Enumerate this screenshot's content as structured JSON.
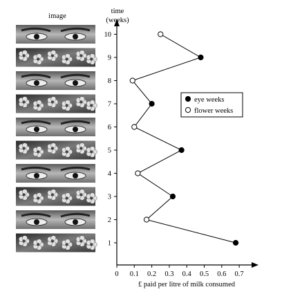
{
  "image_column": {
    "header": "image",
    "panels": [
      "eyes",
      "flowers",
      "eyes",
      "flowers",
      "eyes",
      "flowers",
      "eyes",
      "flowers",
      "eyes",
      "flowers"
    ]
  },
  "chart_data": {
    "type": "line",
    "orientation": "horizontal-time",
    "ylabel_line1": "time",
    "ylabel_line2": "(weeks)",
    "xlabel": "£ paid per litre of milk consumed",
    "x_ticks": [
      "0",
      "0.1",
      "0.2",
      "0.3",
      "0.4",
      "0.5",
      "0.6",
      "0.7"
    ],
    "y_ticks": [
      "1",
      "2",
      "3",
      "4",
      "5",
      "6",
      "7",
      "8",
      "9",
      "10"
    ],
    "xlim": [
      0,
      0.75
    ],
    "ylim": [
      0.5,
      10.5
    ],
    "week_values": [
      {
        "week": 1,
        "value": 0.68,
        "type": "eye"
      },
      {
        "week": 2,
        "value": 0.17,
        "type": "flower"
      },
      {
        "week": 3,
        "value": 0.32,
        "type": "eye"
      },
      {
        "week": 4,
        "value": 0.12,
        "type": "flower"
      },
      {
        "week": 5,
        "value": 0.37,
        "type": "eye"
      },
      {
        "week": 6,
        "value": 0.1,
        "type": "flower"
      },
      {
        "week": 7,
        "value": 0.2,
        "type": "eye"
      },
      {
        "week": 8,
        "value": 0.09,
        "type": "flower"
      },
      {
        "week": 9,
        "value": 0.48,
        "type": "eye"
      },
      {
        "week": 10,
        "value": 0.25,
        "type": "flower"
      }
    ],
    "legend": [
      {
        "label": "eye weeks",
        "marker": "filled-circle"
      },
      {
        "label": "flower weeks",
        "marker": "open-circle"
      }
    ],
    "legend_position": "right",
    "grid": false
  }
}
